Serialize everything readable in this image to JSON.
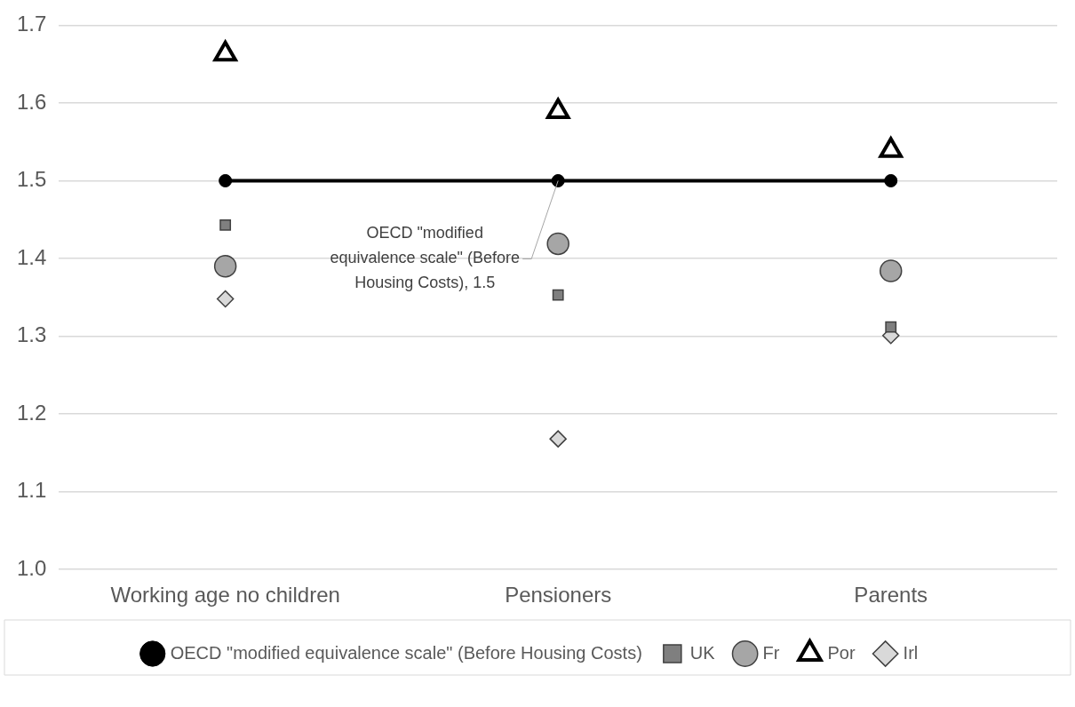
{
  "chart_data": {
    "type": "line",
    "categories": [
      "Working age no children",
      "Pensioners",
      "Parents"
    ],
    "series": [
      {
        "name": "OECD \"modified equivalence scale\" (Before Housing Costs)",
        "color": "#000000",
        "marker": "circle",
        "values": [
          1.5,
          1.5,
          1.5
        ]
      },
      {
        "name": "UK",
        "type": "scatter",
        "color": "#7f7f7f",
        "marker": "square",
        "values": [
          1.443,
          1.353,
          1.312
        ]
      },
      {
        "name": "Fr",
        "type": "scatter",
        "color": "#a6a6a6",
        "marker": "circle",
        "values": [
          1.39,
          1.419,
          1.384
        ]
      },
      {
        "name": "Por",
        "type": "scatter",
        "color": "#000000",
        "marker": "triangle",
        "values": [
          1.663,
          1.589,
          1.539
        ]
      },
      {
        "name": "Irl",
        "type": "scatter",
        "color": "#d9d9d9",
        "marker": "diamond",
        "values": [
          1.348,
          1.168,
          1.301
        ]
      }
    ],
    "ylim": [
      1.0,
      1.7
    ],
    "yticks": [
      {
        "value": 1.0,
        "label": "1.0"
      },
      {
        "value": 1.1,
        "label": "1.1"
      },
      {
        "value": 1.2,
        "label": "1.2"
      },
      {
        "value": 1.3,
        "label": "1.3"
      },
      {
        "value": 1.4,
        "label": "1.4"
      },
      {
        "value": 1.5,
        "label": "1.5"
      },
      {
        "value": 1.6,
        "label": "1.6"
      },
      {
        "value": 1.7,
        "label": "1.7"
      }
    ],
    "grid": "y",
    "legend": "bottom",
    "annotations": [
      {
        "text": "OECD \"modified equivalence scale\" (Before Housing Costs), 1.5",
        "x": "Pensioners",
        "y": 1.5
      }
    ]
  }
}
